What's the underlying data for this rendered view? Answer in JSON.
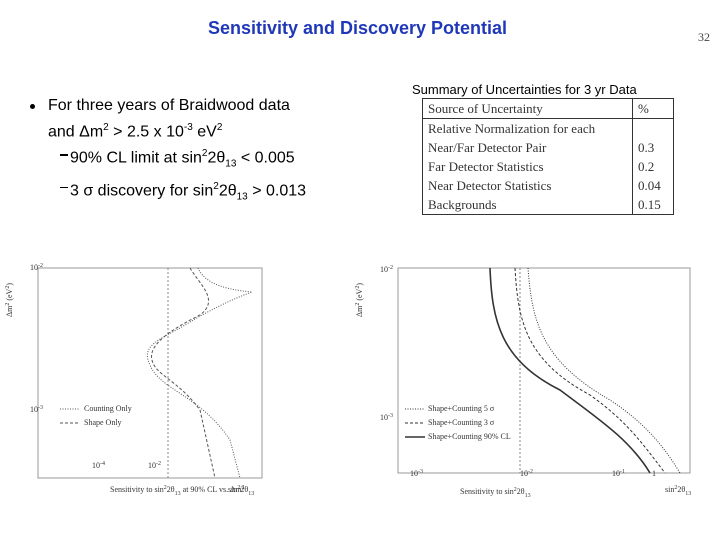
{
  "header": {
    "title": "Sensitivity and Discovery Potential",
    "page_number": "32"
  },
  "bullets": [
    {
      "segments": [
        "For three years of Braidwood data",
        "and ",
        "Δm",
        "2",
        " > 2.5 x 10",
        "-3",
        " eV",
        "2"
      ],
      "sub_bullets": [
        {
          "segments": [
            "90% CL limit  at  sin",
            "2",
            "2θ",
            "13",
            " < 0.005"
          ]
        },
        {
          "segments": [
            "3 ",
            "σ",
            " discovery for sin",
            "2",
            "2θ",
            "13",
            " > 0.013"
          ]
        }
      ]
    }
  ],
  "table": {
    "caption": "Summary of Uncertainties for 3 yr Data",
    "header": [
      "Source of Uncertainty",
      "%"
    ],
    "rows": [
      [
        [
          "Relative Normalization for each",
          "Near/Far Detector Pair"
        ],
        0.3
      ],
      [
        [
          "Far Detector Statistics"
        ],
        0.2
      ],
      [
        [
          "Near Detector Statistics"
        ],
        0.04
      ],
      [
        [
          "Backgrounds"
        ],
        0.15
      ]
    ]
  },
  "plots": [
    {
      "y_label": [
        "Δm",
        "2",
        " (eV",
        "2",
        ")"
      ],
      "y_ticks": [
        [
          "10",
          "-2"
        ],
        [
          "10",
          "-3"
        ]
      ],
      "x_ticks": [
        [
          "10",
          "-4"
        ],
        [
          "10",
          "-2"
        ]
      ],
      "x_label": [
        "Sensitivity to sin",
        "2",
        "2θ",
        "13",
        " at 90% CL vs. Δm",
        "2"
      ],
      "x_end_label": [
        "sin",
        "2",
        "2θ",
        "13"
      ],
      "legend": [
        "Counting Only",
        "Shape Only"
      ]
    },
    {
      "y_label": [
        "Δm",
        "2",
        " (eV",
        "2",
        ")"
      ],
      "y_ticks": [
        [
          "10",
          "-2"
        ],
        [
          "10",
          "-3"
        ]
      ],
      "x_ticks": [
        [
          "10",
          "-3"
        ],
        [
          "10",
          "-2"
        ],
        [
          "10",
          "-1"
        ],
        [
          "1"
        ]
      ],
      "x_label": [
        "Sensitivity to sin",
        "2",
        "2θ",
        "13"
      ],
      "x_end_label": [
        "sin",
        "2",
        "2θ",
        "13"
      ],
      "legend": [
        "Shape+Counting 5 σ",
        "Shape+Counting 3 σ",
        "Shape+Counting 90% CL"
      ]
    }
  ]
}
